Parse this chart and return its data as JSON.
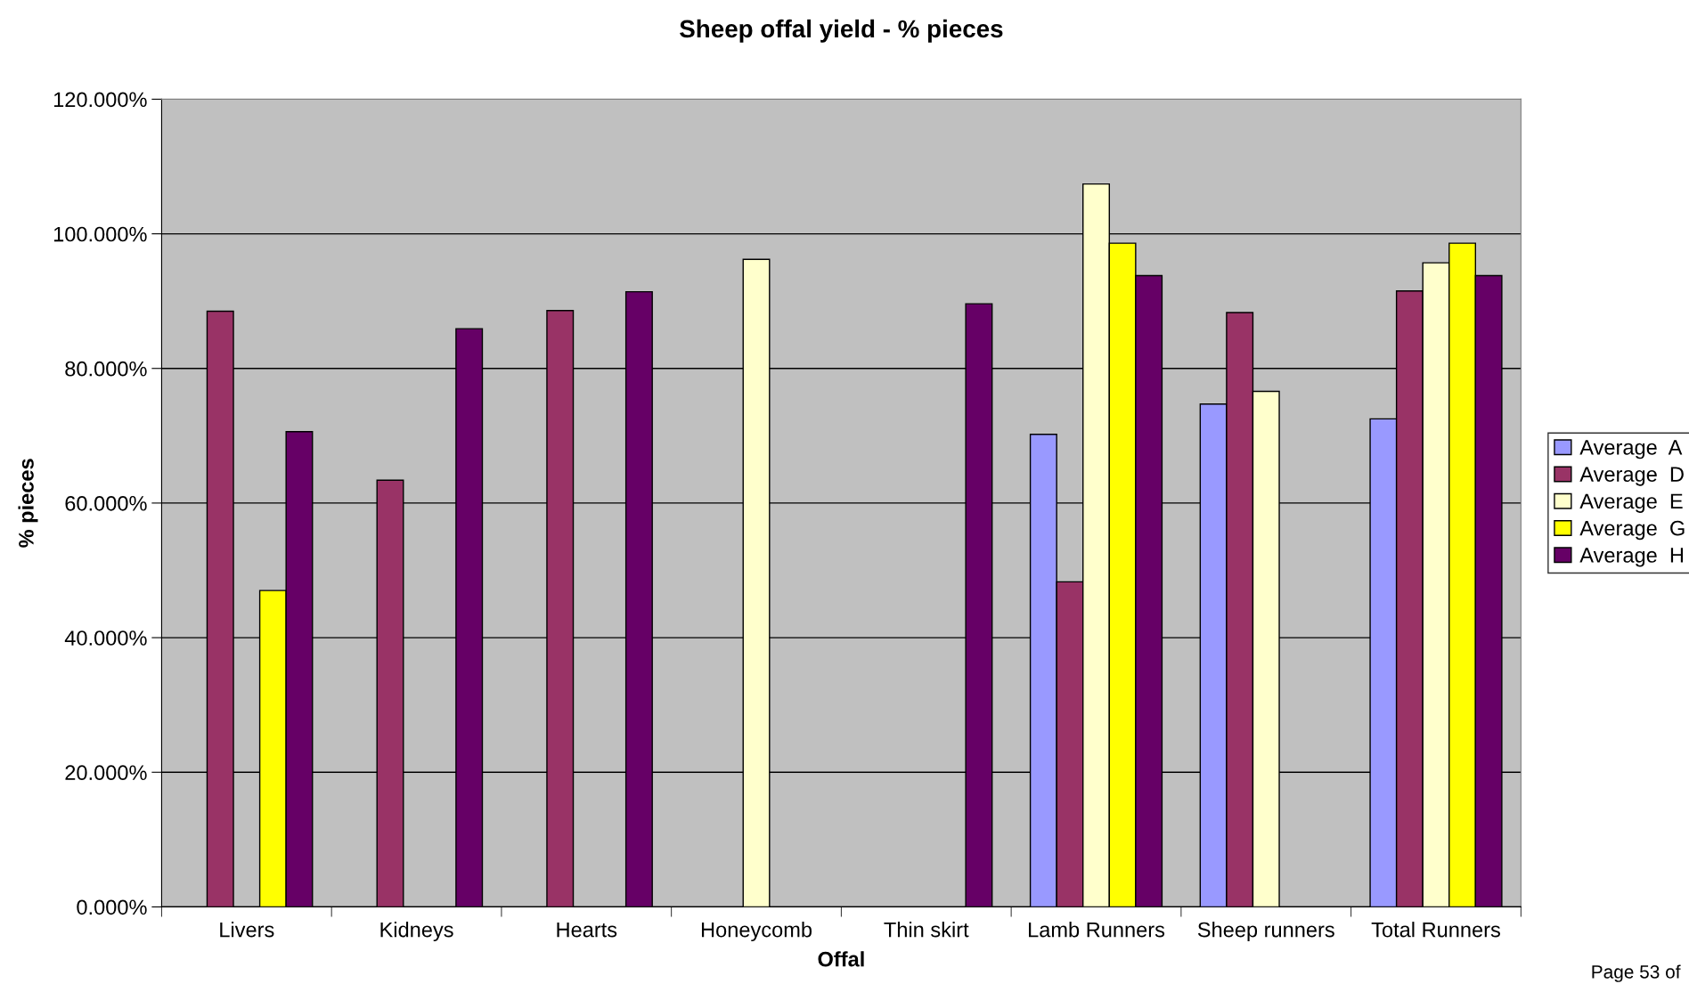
{
  "chart_data": {
    "type": "bar",
    "title": "Sheep offal yield - % pieces",
    "xlabel": "Offal",
    "ylabel": "% pieces",
    "categories": [
      "Livers",
      "Kidneys",
      "Hearts",
      "Honeycomb",
      "Thin skirt",
      "Lamb Runners",
      "Sheep runners",
      "Total Runners"
    ],
    "series": [
      {
        "name": "Average  A",
        "color": "#9999ff",
        "values": [
          null,
          null,
          null,
          null,
          null,
          70.2,
          74.7,
          72.5
        ]
      },
      {
        "name": "Average  D",
        "color": "#993366",
        "values": [
          88.5,
          63.4,
          88.6,
          null,
          null,
          48.3,
          88.3,
          91.5
        ]
      },
      {
        "name": "Average  E",
        "color": "#ffffcc",
        "values": [
          null,
          null,
          null,
          96.2,
          null,
          107.4,
          76.6,
          95.7
        ]
      },
      {
        "name": "Average  G",
        "color": "#ffff00",
        "values": [
          47.0,
          null,
          null,
          null,
          null,
          98.6,
          null,
          98.6
        ]
      },
      {
        "name": "Average  H",
        "color": "#660066",
        "values": [
          70.6,
          85.9,
          91.4,
          null,
          89.6,
          93.8,
          null,
          93.8
        ]
      }
    ],
    "ylim": [
      0,
      120
    ],
    "yticks": [
      {
        "value": 0,
        "label": "0.000%"
      },
      {
        "value": 20,
        "label": "20.000%"
      },
      {
        "value": 40,
        "label": "40.000%"
      },
      {
        "value": 60,
        "label": "60.000%"
      },
      {
        "value": 80,
        "label": "80.000%"
      },
      {
        "value": 100,
        "label": "100.000%"
      },
      {
        "value": 120,
        "label": "120.000%"
      }
    ],
    "grid": "y",
    "legend": "right",
    "annotations": [
      "Page 53 of"
    ]
  }
}
